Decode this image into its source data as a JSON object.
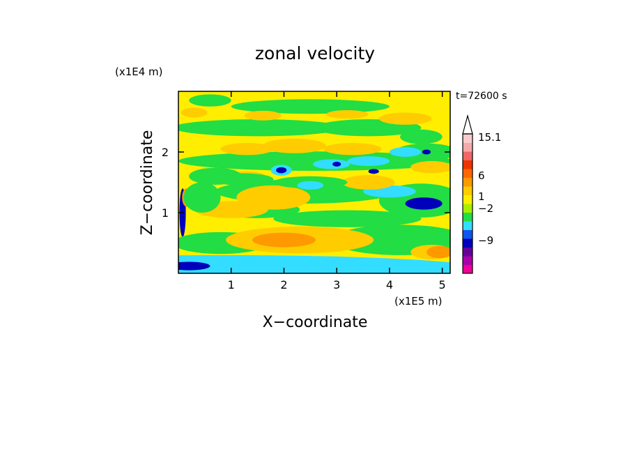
{
  "chart_data": {
    "type": "heatmap",
    "title": "zonal velocity",
    "xlabel": "X−coordinate",
    "ylabel": "Z−coordinate",
    "x_unit": "(x1E5 m)",
    "y_unit": "(x1E4 m)",
    "time_label": "t=72600 s",
    "x_ticks": [
      1,
      2,
      3,
      4,
      5
    ],
    "y_ticks": [
      1,
      2
    ],
    "xlim": [
      0,
      5.15
    ],
    "ylim": [
      0,
      3.0
    ],
    "colorbar": {
      "labels": [
        "15.1",
        "6",
        "1",
        "−2",
        "−9"
      ],
      "label_values": [
        15.1,
        6,
        1,
        -2,
        -9
      ],
      "colors": [
        "#ee0099",
        "#aa00aa",
        "#660099",
        "#0000bb",
        "#1155ee",
        "#33ddff",
        "#22dd44",
        "#aaee00",
        "#ffee00",
        "#ffcc00",
        "#ff9900",
        "#ff6600",
        "#ee3300",
        "#ee6666",
        "#f4aaaa",
        "#f8cccc"
      ],
      "overflow_color": "#ffffff"
    },
    "field": {
      "background": "#ffee00",
      "blobs": [
        {
          "cx": 0.9,
          "cz": 0.05,
          "rx": 5.0,
          "rz": 0.25,
          "c": "#33ddff"
        },
        {
          "cx": 0.2,
          "cz": 0.12,
          "rx": 0.4,
          "rz": 0.07,
          "c": "#0000bb"
        },
        {
          "cx": 0.08,
          "cz": 1.0,
          "rx": 0.06,
          "rz": 0.4,
          "c": "#0000bb"
        },
        {
          "cx": 0.15,
          "cz": 1.25,
          "rx": 0.08,
          "rz": 0.15,
          "c": "#ff9900"
        },
        {
          "cx": 0.8,
          "cz": 0.5,
          "rx": 0.9,
          "rz": 0.18,
          "c": "#22dd44"
        },
        {
          "cx": 4.2,
          "cz": 0.55,
          "rx": 1.3,
          "rz": 0.25,
          "c": "#22dd44"
        },
        {
          "cx": 4.8,
          "cz": 0.35,
          "rx": 0.4,
          "rz": 0.12,
          "c": "#ffcc00"
        },
        {
          "cx": 4.95,
          "cz": 0.35,
          "rx": 0.25,
          "rz": 0.1,
          "c": "#ff9900"
        },
        {
          "cx": 2.3,
          "cz": 0.55,
          "rx": 1.4,
          "rz": 0.22,
          "c": "#ffcc00"
        },
        {
          "cx": 2.0,
          "cz": 0.55,
          "rx": 0.6,
          "rz": 0.12,
          "c": "#ff9900"
        },
        {
          "cx": 3.2,
          "cz": 0.9,
          "rx": 1.4,
          "rz": 0.14,
          "c": "#22dd44"
        },
        {
          "cx": 1.5,
          "cz": 1.05,
          "rx": 0.8,
          "rz": 0.14,
          "c": "#22dd44"
        },
        {
          "cx": 1.0,
          "cz": 1.05,
          "rx": 0.7,
          "rz": 0.14,
          "c": "#ffcc00"
        },
        {
          "cx": 0.45,
          "cz": 1.25,
          "rx": 0.35,
          "rz": 0.25,
          "c": "#22dd44"
        },
        {
          "cx": 2.4,
          "cz": 1.35,
          "rx": 1.7,
          "rz": 0.2,
          "c": "#22dd44"
        },
        {
          "cx": 1.8,
          "cz": 1.25,
          "rx": 0.7,
          "rz": 0.2,
          "c": "#ffcc00"
        },
        {
          "cx": 4.6,
          "cz": 1.2,
          "rx": 0.8,
          "rz": 0.28,
          "c": "#22dd44"
        },
        {
          "cx": 4.65,
          "cz": 1.15,
          "rx": 0.35,
          "rz": 0.1,
          "c": "#0000bb"
        },
        {
          "cx": 4.0,
          "cz": 1.35,
          "rx": 0.5,
          "rz": 0.1,
          "c": "#33ddff"
        },
        {
          "cx": 3.6,
          "cz": 1.5,
          "rx": 0.5,
          "rz": 0.12,
          "c": "#ffcc00"
        },
        {
          "cx": 1.3,
          "cz": 1.6,
          "rx": 0.35,
          "rz": 0.08,
          "c": "#ffcc00"
        },
        {
          "cx": 2.5,
          "cz": 1.5,
          "rx": 0.7,
          "rz": 0.1,
          "c": "#22dd44"
        },
        {
          "cx": 2.5,
          "cz": 1.45,
          "rx": 0.25,
          "rz": 0.07,
          "c": "#33ddff"
        },
        {
          "cx": 0.7,
          "cz": 1.6,
          "rx": 0.5,
          "rz": 0.14,
          "c": "#22dd44"
        },
        {
          "cx": 2.6,
          "cz": 1.85,
          "rx": 2.6,
          "rz": 0.16,
          "c": "#22dd44"
        },
        {
          "cx": 1.2,
          "cz": 1.55,
          "rx": 0.6,
          "rz": 0.1,
          "c": "#22dd44"
        },
        {
          "cx": 1.95,
          "cz": 1.7,
          "rx": 0.2,
          "rz": 0.09,
          "c": "#33ddff"
        },
        {
          "cx": 2.9,
          "cz": 1.8,
          "rx": 0.35,
          "rz": 0.08,
          "c": "#33ddff"
        },
        {
          "cx": 3.6,
          "cz": 1.85,
          "rx": 0.4,
          "rz": 0.08,
          "c": "#33ddff"
        },
        {
          "cx": 4.7,
          "cz": 2.0,
          "rx": 0.6,
          "rz": 0.14,
          "c": "#22dd44"
        },
        {
          "cx": 4.8,
          "cz": 1.75,
          "rx": 0.4,
          "rz": 0.1,
          "c": "#ffcc00"
        },
        {
          "cx": 4.3,
          "cz": 2.0,
          "rx": 0.3,
          "rz": 0.08,
          "c": "#33ddff"
        },
        {
          "cx": 4.7,
          "cz": 2.0,
          "rx": 0.08,
          "rz": 0.04,
          "c": "#0000bb"
        },
        {
          "cx": 1.95,
          "cz": 1.7,
          "rx": 0.1,
          "rz": 0.05,
          "c": "#0000bb"
        },
        {
          "cx": 3.0,
          "cz": 1.8,
          "rx": 0.08,
          "rz": 0.04,
          "c": "#0000bb"
        },
        {
          "cx": 3.7,
          "cz": 1.68,
          "rx": 0.1,
          "rz": 0.04,
          "c": "#0000bb"
        },
        {
          "cx": 1.3,
          "cz": 2.05,
          "rx": 0.5,
          "rz": 0.1,
          "c": "#ffcc00"
        },
        {
          "cx": 2.2,
          "cz": 2.1,
          "rx": 0.6,
          "rz": 0.12,
          "c": "#ffcc00"
        },
        {
          "cx": 3.3,
          "cz": 2.05,
          "rx": 0.55,
          "rz": 0.1,
          "c": "#ffcc00"
        },
        {
          "cx": 1.5,
          "cz": 2.4,
          "rx": 1.6,
          "rz": 0.14,
          "c": "#22dd44"
        },
        {
          "cx": 3.6,
          "cz": 2.4,
          "rx": 1.0,
          "rz": 0.14,
          "c": "#22dd44"
        },
        {
          "cx": 4.3,
          "cz": 2.55,
          "rx": 0.5,
          "rz": 0.1,
          "c": "#ffcc00"
        },
        {
          "cx": 4.6,
          "cz": 2.25,
          "rx": 0.4,
          "rz": 0.12,
          "c": "#22dd44"
        },
        {
          "cx": 2.5,
          "cz": 2.75,
          "rx": 1.5,
          "rz": 0.12,
          "c": "#22dd44"
        },
        {
          "cx": 0.6,
          "cz": 2.85,
          "rx": 0.4,
          "rz": 0.1,
          "c": "#22dd44"
        },
        {
          "cx": 1.6,
          "cz": 2.6,
          "rx": 0.35,
          "rz": 0.08,
          "c": "#ffcc00"
        },
        {
          "cx": 0.3,
          "cz": 2.65,
          "rx": 0.25,
          "rz": 0.08,
          "c": "#ffcc00"
        },
        {
          "cx": 3.2,
          "cz": 2.62,
          "rx": 0.4,
          "rz": 0.07,
          "c": "#ffcc00"
        }
      ]
    }
  }
}
